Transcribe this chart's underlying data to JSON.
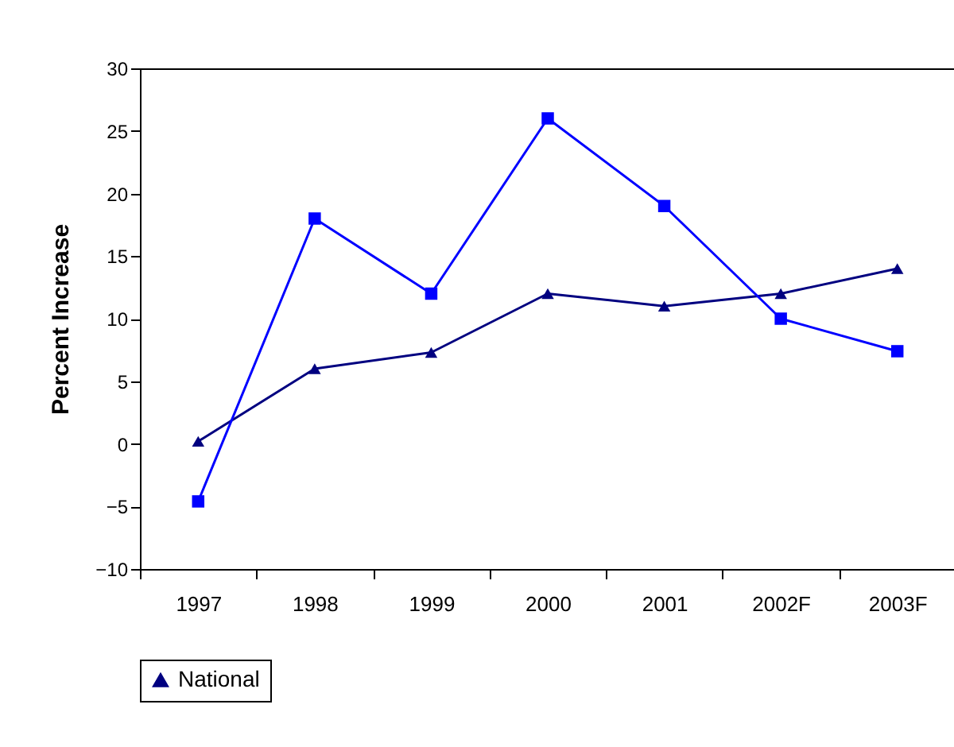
{
  "chart_data": {
    "type": "line",
    "ylabel": "Percent Increase",
    "categories": [
      "1997",
      "1998",
      "1999",
      "2000",
      "2001",
      "2002F",
      "2003F"
    ],
    "ylim": [
      -10,
      30
    ],
    "yticks": [
      -10,
      -5,
      0,
      5,
      10,
      15,
      20,
      25,
      30
    ],
    "grid": false,
    "legend": "bottom",
    "series": [
      {
        "name": "National",
        "color": "#000080",
        "marker": "triangle",
        "values": [
          0.2,
          6,
          7.3,
          12,
          11,
          12,
          14
        ]
      },
      {
        "color": "#0000ff",
        "marker": "square",
        "values": [
          -4.6,
          18,
          12,
          26,
          19,
          10,
          7.4
        ]
      }
    ]
  }
}
